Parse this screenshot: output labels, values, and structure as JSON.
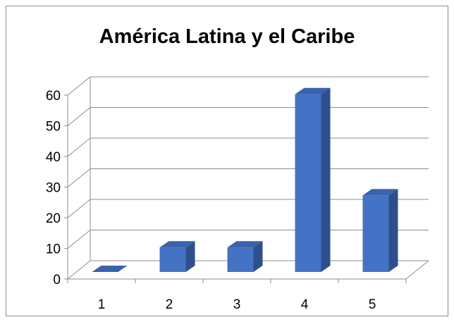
{
  "chart_data": {
    "type": "bar",
    "title": "América Latina y el Caribe",
    "categories": [
      "1",
      "2",
      "3",
      "4",
      "5"
    ],
    "values": [
      0,
      8,
      8,
      58,
      25
    ],
    "ylim": [
      0,
      60
    ],
    "yticks": [
      "0",
      "10",
      "20",
      "30",
      "40",
      "50",
      "60"
    ],
    "xlabel": "",
    "ylabel": "",
    "grid": true,
    "legend": "none",
    "bar_color": "#4472c4",
    "bar_side_color": "#2f4f8c",
    "bar_top_color": "#3a62ad"
  }
}
